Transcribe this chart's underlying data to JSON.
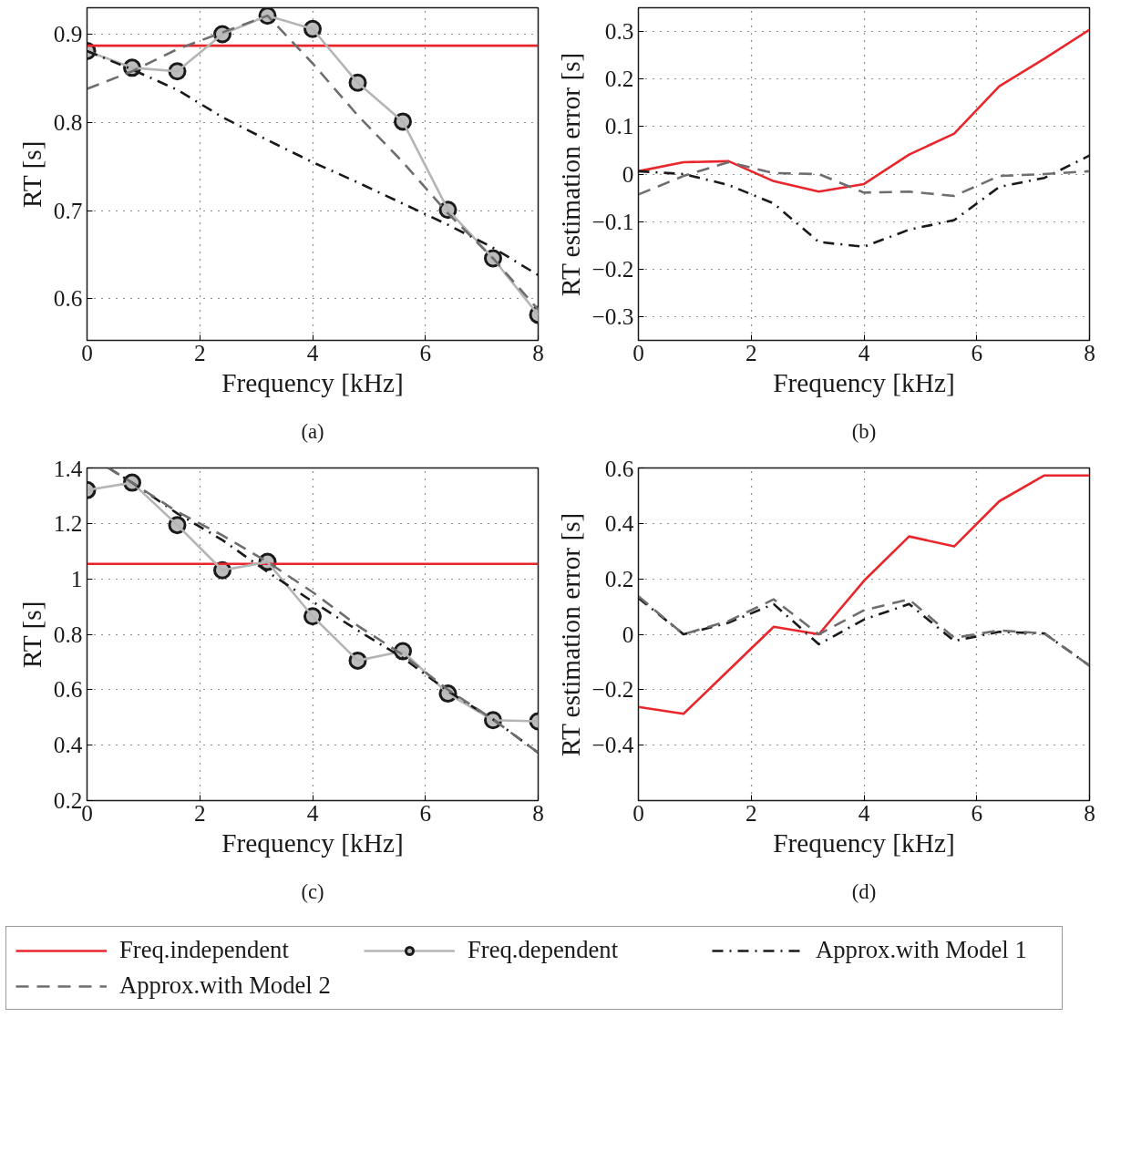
{
  "chart_data": [
    {
      "type": "line",
      "xlabel": "Frequency [kHz]",
      "ylabel": "RT [s]",
      "annotations": [
        "(a)"
      ],
      "x": [
        0,
        0.8,
        1.6,
        2.4,
        3.2,
        4,
        4.8,
        5.6,
        6.4,
        7.2,
        8
      ],
      "xlim": [
        0,
        8
      ],
      "xticks": [
        0,
        2,
        4,
        6,
        8
      ],
      "ylim": [
        0.553,
        0.93
      ],
      "yticks": [
        0.6,
        0.7,
        0.8,
        0.9
      ],
      "grid": true,
      "series": [
        {
          "color": "#e8262b",
          "line_style": "solid",
          "marker": "none",
          "x": [
            0,
            8
          ],
          "values": [
            0.887,
            0.887
          ]
        },
        {
          "color": "#b5b5b5",
          "line_style": "solid",
          "marker": "circle",
          "values": [
            0.881,
            0.862,
            0.858,
            0.9,
            0.921,
            0.906,
            0.845,
            0.801,
            0.701,
            0.646,
            0.582
          ]
        },
        {
          "color": "#1a1a1a",
          "line_style": "dashdot",
          "marker": "none",
          "values": [
            0.881,
            0.86,
            0.837,
            0.806,
            0.78,
            0.755,
            0.732,
            0.708,
            0.684,
            0.658,
            0.627
          ]
        },
        {
          "color": "#6e6e6e",
          "line_style": "dashed",
          "marker": "none",
          "values": [
            0.838,
            0.858,
            0.883,
            0.902,
            0.921,
            0.867,
            0.808,
            0.755,
            0.697,
            0.646,
            0.588
          ]
        }
      ]
    },
    {
      "type": "line",
      "xlabel": "Frequency [kHz]",
      "ylabel": "RT estimation error [s]",
      "annotations": [
        "(b)"
      ],
      "x": [
        0,
        0.8,
        1.6,
        2.4,
        3.2,
        4,
        4.8,
        5.6,
        6.4,
        7.2,
        8
      ],
      "xlim": [
        0,
        8
      ],
      "xticks": [
        0,
        2,
        4,
        6,
        8
      ],
      "ylim": [
        -0.35,
        0.35
      ],
      "yticks": [
        {
          "value": -0.3,
          "label": "−0.3"
        },
        {
          "value": -0.2,
          "label": "−0.2"
        },
        {
          "value": -0.1,
          "label": "−0.1"
        },
        0,
        0.1,
        0.2,
        0.3
      ],
      "grid": true,
      "series": [
        {
          "color": "#e8262b",
          "line_style": "solid",
          "marker": "none",
          "values": [
            0.006,
            0.025,
            0.027,
            -0.015,
            -0.037,
            -0.021,
            0.041,
            0.085,
            0.185,
            0.243,
            0.304
          ]
        },
        {
          "color": "#1a1a1a",
          "line_style": "dashdot",
          "marker": "none",
          "values": [
            0.006,
            0,
            -0.023,
            -0.062,
            -0.143,
            -0.153,
            -0.117,
            -0.097,
            -0.027,
            -0.008,
            0.039
          ]
        },
        {
          "color": "#6e6e6e",
          "line_style": "dashed",
          "marker": "none",
          "values": [
            -0.043,
            -0.004,
            0.025,
            0.002,
            0,
            -0.039,
            -0.037,
            -0.046,
            -0.004,
            0,
            0.006
          ]
        }
      ]
    },
    {
      "type": "line",
      "xlabel": "Frequency [kHz]",
      "ylabel": "RT [s]",
      "annotations": [
        "(c)"
      ],
      "x": [
        0,
        0.8,
        1.6,
        2.4,
        3.2,
        4,
        4.8,
        5.6,
        6.4,
        7.2,
        8
      ],
      "xlim": [
        0,
        8
      ],
      "xticks": [
        0,
        2,
        4,
        6,
        8
      ],
      "ylim": [
        0.2,
        1.4
      ],
      "yticks": [
        0.2,
        0.4,
        0.6,
        0.8,
        1,
        1.2,
        1.4
      ],
      "grid": true,
      "legend": "bottom",
      "series": [
        {
          "name": "Freq.independent",
          "color": "#e8262b",
          "line_style": "solid",
          "marker": "none",
          "x": [
            0,
            8
          ],
          "values": [
            1.054,
            1.054
          ]
        },
        {
          "name": "Freq.dependent",
          "color": "#b5b5b5",
          "line_style": "solid",
          "marker": "circle",
          "values": [
            1.32,
            1.347,
            1.194,
            1.031,
            1.061,
            0.865,
            0.705,
            0.739,
            0.586,
            0.49,
            0.486
          ]
        },
        {
          "name": "Approx.with Model 1",
          "color": "#1a1a1a",
          "line_style": "dashdot",
          "marker": "none",
          "x": [
            0.38,
            0.8,
            1.6,
            2.4,
            3.2,
            4,
            4.8,
            5.6,
            6.4,
            7.2,
            8
          ],
          "values": [
            1.4,
            1.347,
            1.236,
            1.14,
            1.025,
            0.918,
            0.814,
            0.715,
            0.595,
            0.493,
            0.373
          ]
        },
        {
          "name": "Approx.with Model 2",
          "color": "#6e6e6e",
          "line_style": "dashed",
          "marker": "none",
          "x": [
            0.38,
            0.8,
            1.6,
            2.4,
            3.2,
            4,
            4.8,
            5.6,
            6.4,
            7.2,
            8
          ],
          "values": [
            1.4,
            1.347,
            1.242,
            1.157,
            1.061,
            0.952,
            0.831,
            0.726,
            0.6,
            0.493,
            0.373
          ]
        }
      ]
    },
    {
      "type": "line",
      "xlabel": "Frequency [kHz]",
      "ylabel": "RT estimation error [s]",
      "annotations": [
        "(d)"
      ],
      "x": [
        0,
        0.8,
        1.6,
        2.4,
        3.2,
        4,
        4.8,
        5.6,
        6.4,
        7.2,
        8
      ],
      "xlim": [
        0,
        8
      ],
      "xticks": [
        0,
        2,
        4,
        6,
        8
      ],
      "ylim": [
        -0.6,
        0.6
      ],
      "yticks": [
        {
          "value": -0.4,
          "label": "−0.4"
        },
        {
          "value": -0.2,
          "label": "−0.2"
        },
        0,
        0.2,
        0.4,
        0.6
      ],
      "grid": true,
      "series": [
        {
          "color": "#e8262b",
          "line_style": "solid",
          "marker": "none",
          "values": [
            -0.262,
            -0.287,
            -0.13,
            0.027,
            0,
            0.193,
            0.353,
            0.317,
            0.48,
            0.573,
            0.573
          ]
        },
        {
          "color": "#1a1a1a",
          "line_style": "dashdot",
          "marker": "none",
          "values": [
            0.131,
            0,
            0.042,
            0.109,
            -0.036,
            0.053,
            0.109,
            -0.024,
            0.009,
            0.003,
            -0.113
          ]
        },
        {
          "color": "#6e6e6e",
          "line_style": "dashed",
          "marker": "none",
          "values": [
            0.137,
            0,
            0.048,
            0.126,
            0,
            0.087,
            0.126,
            -0.013,
            0.014,
            0.003,
            -0.113
          ]
        }
      ]
    }
  ]
}
